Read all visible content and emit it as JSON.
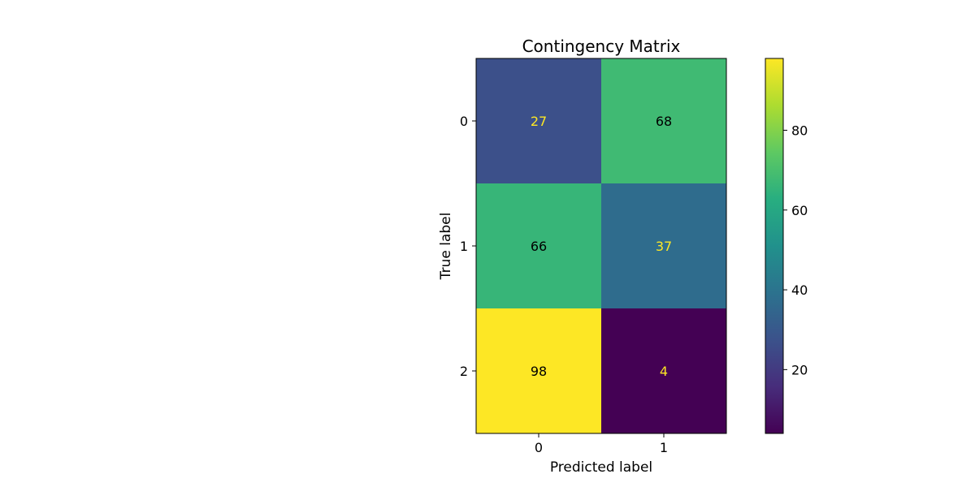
{
  "chart_data": {
    "type": "heatmap",
    "title": "Contingency Matrix",
    "xlabel": "Predicted label",
    "ylabel": "True label",
    "x_categories": [
      "0",
      "1"
    ],
    "y_categories": [
      "0",
      "1",
      "2"
    ],
    "values": [
      [
        27,
        68
      ],
      [
        66,
        37
      ],
      [
        98,
        4
      ]
    ],
    "colormap": "viridis",
    "colorbar": {
      "range": [
        4,
        98
      ],
      "ticks": [
        20,
        40,
        60,
        80
      ]
    },
    "grid": false,
    "legend": "colorbar-right"
  }
}
